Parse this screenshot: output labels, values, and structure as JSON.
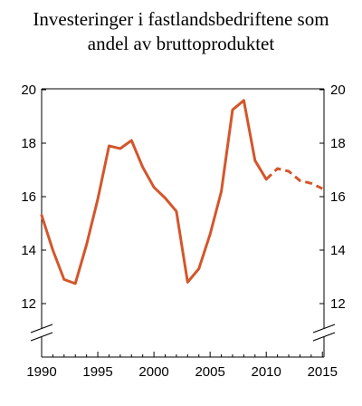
{
  "chart_data": {
    "type": "line",
    "title_lines": [
      "Investeringer i fastlandsbedriftene som",
      "andel av bruttoproduktet"
    ],
    "xlabel": "",
    "ylabel": "",
    "xlim": [
      1990,
      2015.2
    ],
    "ylim": [
      11,
      20
    ],
    "x_ticks": [
      "1990",
      "1995",
      "2000",
      "2005",
      "2010",
      "2015"
    ],
    "y_ticks": [
      "12",
      "14",
      "16",
      "18",
      "20"
    ],
    "grid": false,
    "legend": "none",
    "axis_break": true,
    "line_color": "#d4562b",
    "series": [
      {
        "style": "solid",
        "x": [
          1990,
          1991,
          1992,
          1993,
          1994,
          1995,
          1996,
          1997,
          1998,
          1999,
          2000,
          2001,
          2002,
          2003,
          2004,
          2005,
          2006,
          2007,
          2008,
          2009,
          2010
        ],
        "values": [
          15.3,
          14.0,
          12.9,
          12.75,
          14.2,
          15.9,
          17.9,
          17.8,
          18.1,
          17.1,
          16.35,
          15.95,
          15.45,
          12.8,
          13.3,
          14.6,
          16.2,
          19.25,
          19.6,
          17.35,
          16.65
        ]
      },
      {
        "style": "dashed",
        "x": [
          2010,
          2011,
          2012,
          2013,
          2014,
          2015
        ],
        "values": [
          16.65,
          17.05,
          16.95,
          16.6,
          16.5,
          16.3
        ]
      }
    ]
  }
}
